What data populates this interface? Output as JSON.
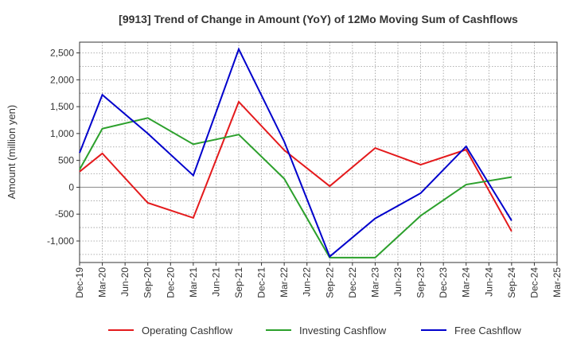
{
  "chart_data": {
    "type": "line",
    "title": "[9913]  Trend of Change in Amount (YoY) of 12Mo Moving Sum of Cashflows",
    "xlabel": "",
    "ylabel": "Amount (million yen)",
    "ylim": [
      -1400,
      2700
    ],
    "yticks": [
      -1000,
      -500,
      0,
      500,
      1000,
      1500,
      2000,
      2500
    ],
    "ytick_labels": [
      "-1,000",
      "-500",
      "0",
      "500",
      "1,000",
      "1,500",
      "2,000",
      "2,500"
    ],
    "x": [
      "Dec-19",
      "Mar-20",
      "Jun-20",
      "Sep-20",
      "Dec-20",
      "Mar-21",
      "Jun-21",
      "Sep-21",
      "Dec-21",
      "Mar-22",
      "Jun-22",
      "Sep-22",
      "Dec-22",
      "Mar-23",
      "Jun-23",
      "Sep-23",
      "Dec-23",
      "Mar-24",
      "Jun-24",
      "Sep-24",
      "Dec-24",
      "Mar-25"
    ],
    "grid": true,
    "legend_position": "bottom",
    "series": [
      {
        "name": "Operating Cashflow",
        "color": "#e41a1c",
        "values": [
          290,
          630,
          null,
          -290,
          null,
          -570,
          null,
          1590,
          null,
          690,
          null,
          20,
          null,
          730,
          null,
          420,
          null,
          700,
          null,
          -820,
          null,
          null
        ]
      },
      {
        "name": "Investing Cashflow",
        "color": "#2ca02c",
        "values": [
          330,
          1090,
          null,
          1290,
          null,
          800,
          null,
          980,
          null,
          160,
          null,
          -1310,
          null,
          -1310,
          null,
          -530,
          null,
          50,
          null,
          190,
          null,
          null
        ]
      },
      {
        "name": "Free Cashflow",
        "color": "#0000cc",
        "values": [
          640,
          1720,
          null,
          1000,
          null,
          220,
          null,
          2570,
          null,
          850,
          null,
          -1290,
          null,
          -580,
          null,
          -110,
          null,
          760,
          null,
          -620,
          null,
          null
        ]
      }
    ]
  }
}
